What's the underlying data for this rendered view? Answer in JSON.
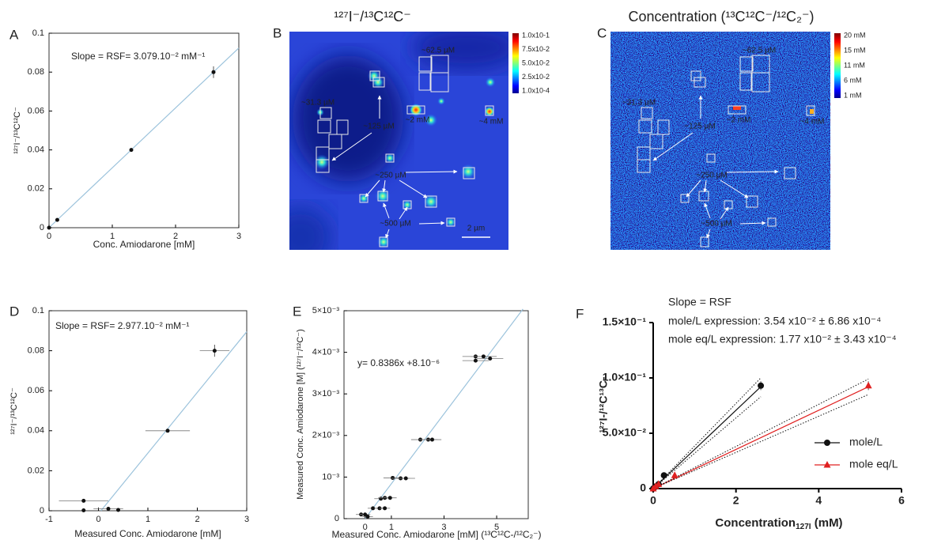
{
  "chart_data": [
    {
      "panel": "A",
      "type": "scatter",
      "annotation": "Slope = RSF= 3.079.10⁻² mM⁻¹",
      "x_label": "Conc. Amiodarone [mM]",
      "y_label": "¹²⁷I⁻/¹³C¹²C⁻",
      "xlim": [
        0,
        3
      ],
      "ylim": [
        0,
        0.1
      ],
      "xticks": [
        0,
        1,
        2,
        3
      ],
      "yticks": [
        0,
        0.02,
        0.04,
        0.06,
        0.08,
        0.1
      ],
      "series": [
        {
          "color": "#111111",
          "marker": "circle",
          "x": [
            0,
            0.13,
            1.3,
            2.6
          ],
          "values": [
            0,
            0.004,
            0.04,
            0.08
          ],
          "xerr": [
            null,
            null,
            null,
            null
          ],
          "yerr": [
            null,
            null,
            null,
            0.003
          ]
        }
      ],
      "fits": [
        {
          "color": "#9cc3dc",
          "style": "solid",
          "x": [
            0,
            3
          ],
          "values": [
            0,
            0.0924
          ]
        }
      ]
    },
    {
      "panel": "D",
      "type": "scatter",
      "annotation": "Slope = RSF= 2.977.10⁻² mM⁻¹",
      "x_label": "Measured Conc. Amiodarone [mM]",
      "y_label": "¹²⁷I⁻/¹³C¹²C⁻",
      "xlim": [
        -1,
        3
      ],
      "ylim": [
        0,
        0.1
      ],
      "xticks": [
        -1,
        0,
        1,
        2,
        3
      ],
      "yticks": [
        0,
        0.02,
        0.04,
        0.06,
        0.08,
        0.1
      ],
      "series": [
        {
          "color": "#111111",
          "marker": "circle",
          "x": [
            -0.3,
            -0.3,
            0.2,
            0.4,
            1.4,
            2.35
          ],
          "values": [
            0.005,
            0.0002,
            0.001,
            0.0004,
            0.04,
            0.08
          ],
          "xerr": [
            0.5,
            null,
            0.3,
            null,
            0.45,
            0.3
          ],
          "yerr": [
            null,
            null,
            null,
            null,
            null,
            0.003
          ]
        }
      ],
      "fits": [
        {
          "color": "#9cc3dc",
          "style": "solid",
          "x": [
            0.05,
            3
          ],
          "values": [
            0,
            0.0895
          ]
        }
      ]
    },
    {
      "panel": "E",
      "type": "scatter",
      "annotation": "y= 0.8386x +8.10⁻⁶",
      "x_label": "Measured Conc. Amiodarone [mM] (¹³C¹²C-/¹²C₂⁻)",
      "y_label": "Measured Conc. Amiodarone [M] (¹²⁷I⁻/¹²C⁻)",
      "xlim": [
        -0.8,
        6.2
      ],
      "ylim": [
        0,
        0.005
      ],
      "xticks": [
        0,
        1,
        3,
        5
      ],
      "yticks": [
        0,
        {
          "value": 0.001,
          "label": "10⁻³"
        },
        {
          "value": 0.002,
          "label": "2×10⁻³"
        },
        {
          "value": 0.003,
          "label": "3×10⁻³"
        },
        {
          "value": 0.004,
          "label": "4×10⁻³"
        },
        {
          "value": 0.005,
          "label": "5×10⁻³"
        }
      ],
      "series": [
        {
          "color": "#111111",
          "marker": "circle",
          "x": [
            -0.15,
            0,
            0.1,
            0.3,
            0.55,
            0.75,
            0.6,
            0.75,
            0.95,
            1.05,
            1.35,
            1.55,
            2.1,
            2.4,
            2.55,
            4.2,
            4.5,
            4.75,
            4.2
          ],
          "values": [
            0.0001,
            0.0001,
            5e-05,
            0.00025,
            0.00025,
            0.00025,
            0.00048,
            0.0005,
            0.0005,
            0.00098,
            0.00097,
            0.00097,
            0.0019,
            0.0019,
            0.0019,
            0.0039,
            0.0039,
            0.00385,
            0.0038
          ],
          "xerr": [
            0.2,
            0.2,
            0.2,
            0.2,
            0.2,
            0.2,
            0.25,
            0.25,
            0.25,
            0.35,
            0.35,
            0.35,
            0.35,
            0.35,
            0.35,
            0.5,
            0.5,
            0.5,
            0.5
          ],
          "yerr": [
            null,
            null,
            null,
            null,
            null,
            null,
            null,
            null,
            null,
            null,
            null,
            null,
            null,
            null,
            null,
            null,
            null,
            null,
            null
          ]
        }
      ],
      "fits": [
        {
          "color": "#9cc3dc",
          "style": "solid",
          "x": [
            0,
            6.0
          ],
          "values": [
            0,
            0.00504
          ]
        }
      ]
    },
    {
      "panel": "F",
      "type": "scatter",
      "annotation_lines": [
        "Slope = RSF",
        "mole/L expression: 3.54 x10⁻² ± 6.86 x10⁻⁴",
        "mole eq/L expression: 1.77 x10⁻² ± 3.43 x10⁻⁴"
      ],
      "x_label": "Concentration",
      "x_label_sub": "127I",
      "x_label_unit": " (mM)",
      "y_label": "¹²⁷I-/¹²C¹³C-",
      "xlim": [
        0,
        6
      ],
      "ylim": [
        0,
        0.15
      ],
      "xticks": [
        0,
        2,
        4,
        6
      ],
      "yticks": [
        0,
        {
          "value": 0.05,
          "label": "5.0×10⁻²"
        },
        {
          "value": 0.1,
          "label": "1.0×10⁻¹"
        },
        {
          "value": 0.15,
          "label": "1.5×10⁻¹"
        }
      ],
      "legend": "lower right",
      "series": [
        {
          "name": "mole/L",
          "color": "#111111",
          "marker": "circle",
          "x": [
            0,
            0.03,
            0.06,
            0.13,
            0.26,
            2.6
          ],
          "values": [
            0,
            0.001,
            0.002,
            0.004,
            0.012,
            0.093
          ],
          "xerr": [
            null,
            null,
            null,
            null,
            null,
            null
          ],
          "yerr": [
            null,
            null,
            null,
            null,
            null,
            0.004
          ]
        },
        {
          "name": "mole eq/L",
          "color": "#e02020",
          "marker": "triangle",
          "x": [
            0,
            0.06,
            0.13,
            0.52,
            5.2
          ],
          "values": [
            0,
            0.002,
            0.004,
            0.012,
            0.093
          ],
          "xerr": [
            null,
            null,
            null,
            null,
            null
          ],
          "yerr": [
            null,
            null,
            null,
            null,
            0.004
          ]
        }
      ],
      "fits": [
        {
          "color": "#111111",
          "style": "solid",
          "x": [
            0,
            2.6
          ],
          "values": [
            0,
            0.092
          ]
        },
        {
          "color": "#111111",
          "style": "dotted",
          "x": [
            0,
            2.6
          ],
          "values": [
            0,
            0.1
          ]
        },
        {
          "color": "#111111",
          "style": "dotted",
          "x": [
            0,
            2.6
          ],
          "values": [
            0,
            0.083
          ]
        },
        {
          "color": "#e02020",
          "style": "solid",
          "x": [
            0,
            5.2
          ],
          "values": [
            0,
            0.092
          ]
        },
        {
          "color": "#111111",
          "style": "dotted",
          "x": [
            0,
            5.2
          ],
          "values": [
            0,
            0.099
          ]
        },
        {
          "color": "#111111",
          "style": "dotted",
          "x": [
            0,
            5.2
          ],
          "values": [
            0,
            0.085
          ]
        }
      ]
    }
  ],
  "images": [
    {
      "panel": "B",
      "title": "¹²⁷I⁻/¹³C¹²C⁻",
      "colorbar_labels": [
        "1.0x10-1",
        "7.5x10-2",
        "5.0x10-2",
        "2.5x10-2",
        "1.0x10-4"
      ],
      "annotations": [
        "~62.5 µM",
        "~31.3 µM",
        "~125 µM",
        "~2 mM",
        "~4 mM",
        "~250 µM",
        "~500 µM"
      ],
      "scale_bar": "2 µm"
    },
    {
      "panel": "C",
      "title": "Concentration (¹³C¹²C⁻/¹²C₂⁻)",
      "colorbar_labels": [
        "20 mM",
        "15 mM",
        "11 mM",
        "6 mM",
        "1 mM"
      ],
      "annotations": [
        "~62.5 µM",
        "~31.3 µM",
        "~125 µM",
        "~2 mM",
        "~4 mM",
        "~250 µM",
        "~500 µM"
      ]
    }
  ]
}
